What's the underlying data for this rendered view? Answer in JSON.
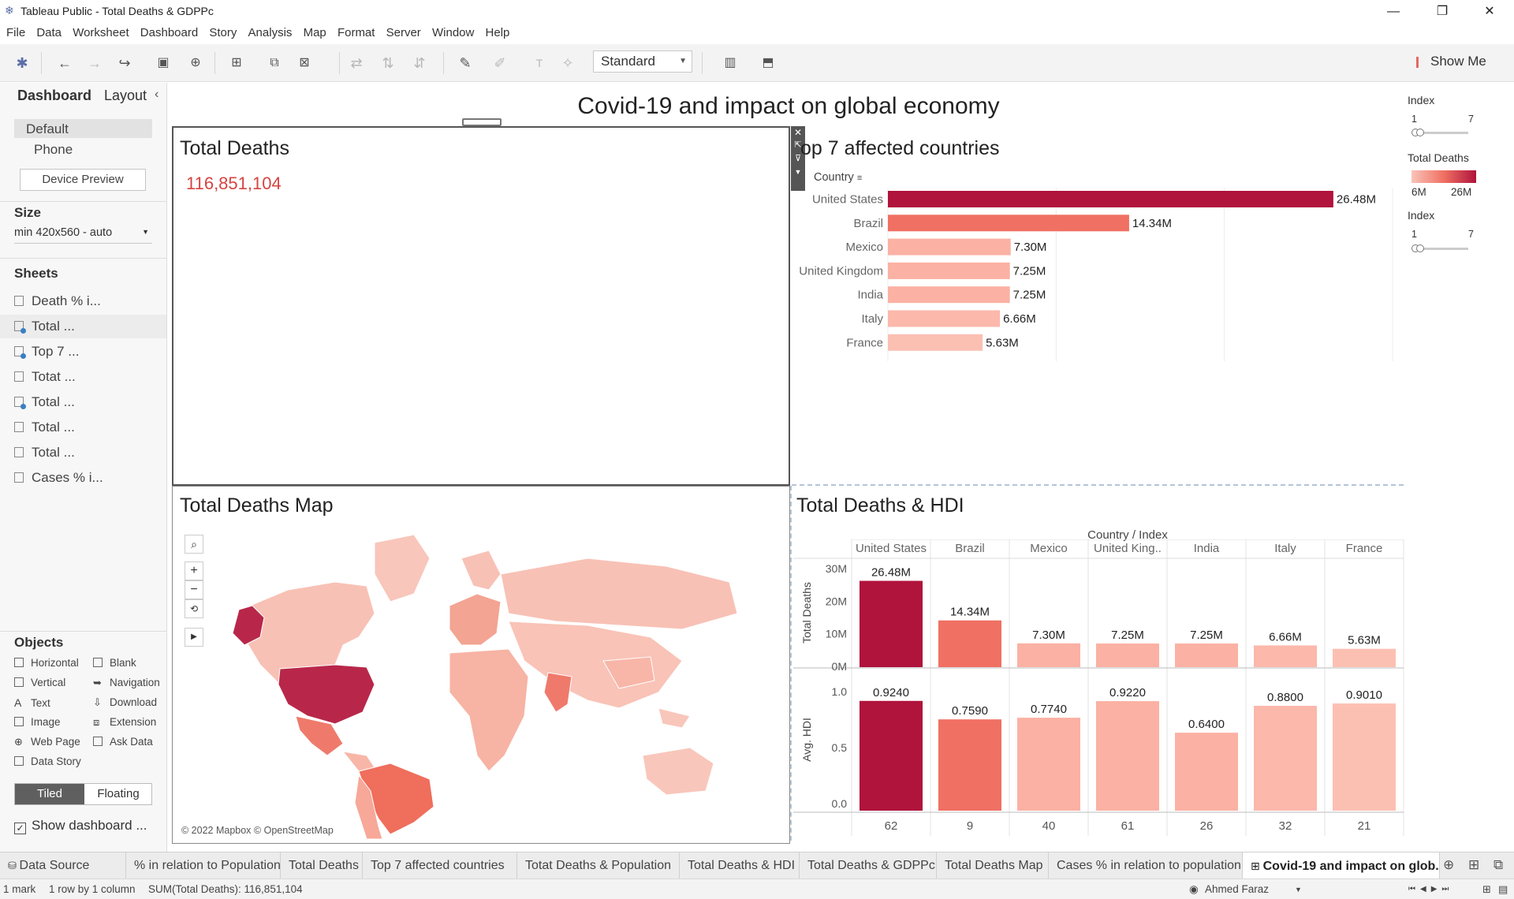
{
  "window": {
    "title": "Tableau Public - Total Deaths & GDPPc",
    "min": "—",
    "restore": "❐",
    "close": "✕"
  },
  "menu": [
    "File",
    "Data",
    "Worksheet",
    "Dashboard",
    "Story",
    "Analysis",
    "Map",
    "Format",
    "Server",
    "Window",
    "Help"
  ],
  "toolbar": {
    "view_mode": "Standard",
    "show_me": "Show Me"
  },
  "left_pane": {
    "tab_dashboard": "Dashboard",
    "tab_layout": "Layout",
    "device_default": "Default",
    "device_phone": "Phone",
    "device_preview": "Device Preview",
    "size_label": "Size",
    "size_value": "min 420x560 - auto",
    "sheets_label": "Sheets",
    "sheets": [
      "Death % i...",
      "Total ...",
      "Top 7 ...",
      "Totat ...",
      "Total ...",
      "Total ...",
      "Total ...",
      "Cases % i..."
    ],
    "objects_label": "Objects",
    "objects_left": [
      "Horizontal",
      "Vertical",
      "Text",
      "Image",
      "Web Page",
      "Data Story"
    ],
    "objects_right": [
      "Blank",
      "Navigation",
      "Download",
      "Extension",
      "Ask Data"
    ],
    "tiled": "Tiled",
    "floating": "Floating",
    "show_title": "Show dashboard ..."
  },
  "dashboard": {
    "title": "Covid-19 and impact on global economy",
    "total_deaths_title": "Total Deaths",
    "total_deaths_value": "116,851,104",
    "map_title": "Total Deaths Map",
    "map_attribution": "© 2022 Mapbox © OpenStreetMap",
    "top7_title": "op 7 affected countries",
    "top7_country_header": "Country",
    "hdi_title": "Total Deaths & HDI",
    "hdi_header": "Country / Index",
    "hdi_y1_label": "Total Deaths",
    "hdi_y2_label": "Avg. HDI",
    "legend_index1": "Index",
    "legend_index1_min": "1",
    "legend_index1_max": "7",
    "legend_total_deaths": "Total Deaths",
    "legend_td_min": "6M",
    "legend_td_max": "26M",
    "legend_index2": "Index",
    "legend_index2_min": "1",
    "legend_index2_max": "7"
  },
  "chart_data": [
    {
      "type": "bar",
      "orientation": "horizontal",
      "title": "op 7 affected countries",
      "categories": [
        "United States",
        "Brazil",
        "Mexico",
        "United Kingdom",
        "India",
        "Italy",
        "France"
      ],
      "values": [
        26.48,
        14.34,
        7.3,
        7.25,
        7.25,
        6.66,
        5.63
      ],
      "labels": [
        "26.48M",
        "14.34M",
        "7.30M",
        "7.25M",
        "7.25M",
        "6.66M",
        "5.63M"
      ],
      "colors": [
        "#b0133c",
        "#f07063",
        "#fbb1a3",
        "#fbb1a3",
        "#fbb1a3",
        "#fbb8ab",
        "#fcc0b3"
      ],
      "xlim": [
        0,
        30
      ]
    },
    {
      "type": "bar",
      "title": "Total Deaths & HDI",
      "categories": [
        "United States",
        "Brazil",
        "Mexico",
        "United King..",
        "India",
        "Italy",
        "France"
      ],
      "index": [
        "62",
        "9",
        "40",
        "61",
        "26",
        "32",
        "21"
      ],
      "series": [
        {
          "name": "Total Deaths",
          "values": [
            26.48,
            14.34,
            7.3,
            7.25,
            7.25,
            6.66,
            5.63
          ],
          "labels": [
            "26.48M",
            "14.34M",
            "7.30M",
            "7.25M",
            "7.25M",
            "6.66M",
            "5.63M"
          ],
          "ylim": [
            0,
            30
          ],
          "ticks": [
            "30M",
            "20M",
            "10M",
            "0M"
          ]
        },
        {
          "name": "Avg. HDI",
          "values": [
            0.924,
            0.759,
            0.774,
            0.922,
            0.64,
            0.88,
            0.901
          ],
          "labels": [
            "0.9240",
            "0.7590",
            "0.7740",
            "0.9220",
            "0.6400",
            "0.8800",
            "0.9010"
          ],
          "ylim": [
            0,
            1
          ],
          "ticks": [
            "1.0",
            "0.5",
            "0.0"
          ]
        }
      ],
      "colors": [
        "#b0133c",
        "#f07063",
        "#fbb1a3",
        "#fbb1a3",
        "#fbb1a3",
        "#fbb8ab",
        "#fcc0b3"
      ]
    }
  ],
  "bottom_tabs": [
    "Data Source",
    "% in relation to Population",
    "Total Deaths",
    "Top 7 affected countries",
    "Totat Deaths & Population",
    "Total Deaths & HDI",
    "Total Deaths & GDPPc",
    "Total Deaths Map",
    "Cases % in relation to population",
    "Covid-19 and impact on glob..."
  ],
  "status": {
    "marks": "1 mark",
    "rows": "1 row by 1 column",
    "sum": "SUM(Total Deaths): 116,851,104",
    "user": "Ahmed Faraz"
  }
}
